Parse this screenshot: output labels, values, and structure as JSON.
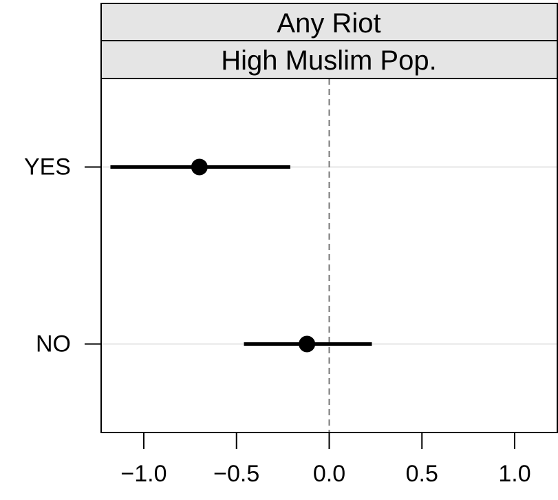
{
  "chart_data": {
    "type": "scatter",
    "subtype": "coefficient plot with interval bars",
    "strip_labels": [
      "Any Riot",
      "High Muslim Pop."
    ],
    "categories": [
      "YES",
      "NO"
    ],
    "points": [
      {
        "category": "YES",
        "estimate": -0.7,
        "lower": -1.18,
        "upper": -0.21
      },
      {
        "category": "NO",
        "estimate": -0.12,
        "lower": -0.46,
        "upper": 0.23
      }
    ],
    "xlim": [
      -1.23,
      1.23
    ],
    "x_ticks": [
      -1.0,
      -0.5,
      0.0,
      0.5,
      1.0
    ],
    "x_tick_labels": [
      "−1.0",
      "−0.5",
      "0.0",
      "0.5",
      "1.0"
    ],
    "reference_line": {
      "x": 0,
      "style": "dashed"
    },
    "grid": "horizontal lines at categories",
    "xlabel": "",
    "ylabel": "",
    "colors": {
      "strip_background": "#e5e5e5",
      "grid": "#e6e6e6",
      "reference_line": "#777777",
      "marks": "#000000"
    }
  }
}
